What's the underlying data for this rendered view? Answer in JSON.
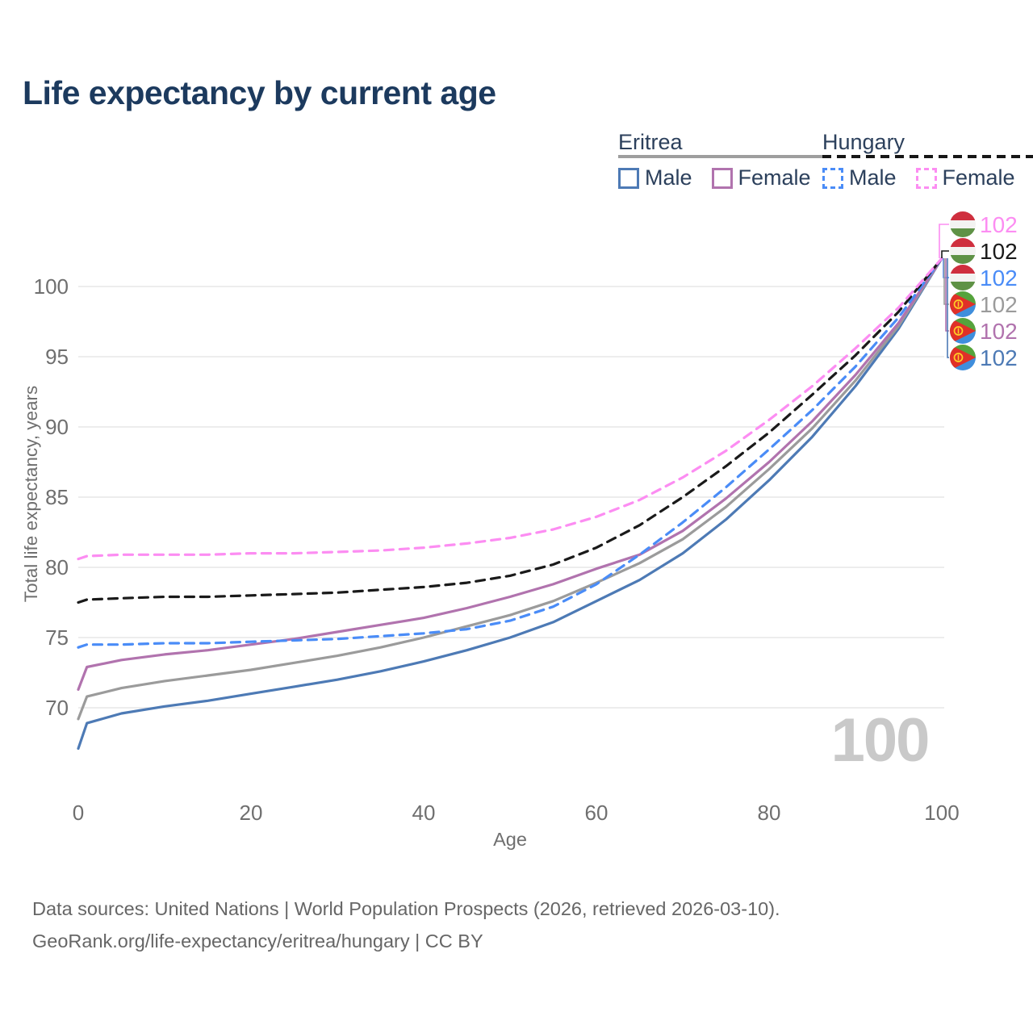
{
  "title": "Life expectancy by current age",
  "legend": {
    "groups": [
      {
        "name": "Eritrea",
        "line_style": "solid",
        "underline_color": "#9e9e9e",
        "items": [
          {
            "label": "Male",
            "color": "#4d7ab5"
          },
          {
            "label": "Female",
            "color": "#b173ae"
          }
        ]
      },
      {
        "name": "Hungary",
        "line_style": "dashed",
        "underline_color": "#161616",
        "items": [
          {
            "label": "Male",
            "color": "#4a8cf7"
          },
          {
            "label": "Female",
            "color": "#fc8df2"
          }
        ]
      }
    ]
  },
  "watermark": {
    "text": "100"
  },
  "footer": {
    "line1": "Data sources: United Nations | World Population Prospects (2026, retrieved 2026-03-10).",
    "line2": "GeoRank.org/life-expectancy/eritrea/hungary | CC BY"
  },
  "chart_data": {
    "type": "line",
    "title": "Life expectancy by current age",
    "xlabel": "Age",
    "ylabel": "Total life expectancy, years",
    "x_ticks": [
      0,
      20,
      40,
      60,
      80,
      100
    ],
    "y_ticks": [
      70,
      75,
      80,
      85,
      90,
      95,
      100
    ],
    "xlim": [
      0,
      100
    ],
    "ylim": [
      66,
      103
    ],
    "grid": true,
    "legend_position": "top-right",
    "ages": [
      0,
      1,
      5,
      10,
      15,
      20,
      25,
      30,
      35,
      40,
      45,
      50,
      55,
      60,
      65,
      70,
      75,
      80,
      85,
      90,
      95,
      100
    ],
    "series": [
      {
        "name": "Eritrea Male",
        "country": "Eritrea",
        "sex": "Male",
        "color": "#4d7ab5",
        "dashed": false,
        "values": [
          67.1,
          68.9,
          69.6,
          70.1,
          70.5,
          71.0,
          71.5,
          72.0,
          72.6,
          73.3,
          74.1,
          75.0,
          76.1,
          77.6,
          79.1,
          81.0,
          83.4,
          86.2,
          89.3,
          92.9,
          97.0,
          102
        ]
      },
      {
        "name": "Eritrea Both sexes",
        "country": "Eritrea",
        "sex": "Both",
        "color": "#9b9b9b",
        "dashed": false,
        "values": [
          69.2,
          70.8,
          71.4,
          71.9,
          72.3,
          72.7,
          73.2,
          73.7,
          74.3,
          75.0,
          75.8,
          76.6,
          77.6,
          78.9,
          80.3,
          82.0,
          84.3,
          87.0,
          89.9,
          93.3,
          97.2,
          102
        ]
      },
      {
        "name": "Eritrea Female",
        "country": "Eritrea",
        "sex": "Female",
        "color": "#b173ae",
        "dashed": false,
        "values": [
          71.3,
          72.9,
          73.4,
          73.8,
          74.1,
          74.5,
          74.9,
          75.4,
          75.9,
          76.4,
          77.1,
          77.9,
          78.8,
          79.9,
          80.9,
          82.6,
          84.9,
          87.5,
          90.4,
          93.7,
          97.4,
          102
        ]
      },
      {
        "name": "Hungary Male",
        "country": "Hungary",
        "sex": "Male",
        "color": "#4a8cf7",
        "dashed": true,
        "values": [
          74.3,
          74.5,
          74.5,
          74.6,
          74.6,
          74.7,
          74.8,
          74.9,
          75.1,
          75.3,
          75.6,
          76.2,
          77.2,
          78.8,
          80.9,
          83.2,
          85.7,
          88.4,
          91.2,
          94.3,
          97.8,
          102
        ]
      },
      {
        "name": "Hungary Both sexes",
        "country": "Hungary",
        "sex": "Both",
        "color": "#1a1a1a",
        "dashed": true,
        "values": [
          77.5,
          77.7,
          77.8,
          77.9,
          77.9,
          78.0,
          78.1,
          78.2,
          78.4,
          78.6,
          78.9,
          79.4,
          80.2,
          81.4,
          83.0,
          85.0,
          87.2,
          89.6,
          92.3,
          95.1,
          98.2,
          102
        ]
      },
      {
        "name": "Hungary Female",
        "country": "Hungary",
        "sex": "Female",
        "color": "#fc8df2",
        "dashed": true,
        "values": [
          80.6,
          80.8,
          80.9,
          80.9,
          80.9,
          81.0,
          81.0,
          81.1,
          81.2,
          81.4,
          81.7,
          82.1,
          82.7,
          83.6,
          84.8,
          86.4,
          88.3,
          90.5,
          92.9,
          95.6,
          98.5,
          102
        ]
      }
    ],
    "end_labels": [
      {
        "flag": "hungary",
        "series": "Hungary Female",
        "text": "102",
        "color": "#fc8df2"
      },
      {
        "flag": "hungary",
        "series": "Hungary Both sexes",
        "text": "102",
        "color": "#1a1a1a"
      },
      {
        "flag": "hungary",
        "series": "Hungary Male",
        "text": "102",
        "color": "#4a8cf7"
      },
      {
        "flag": "eritrea",
        "series": "Eritrea Both sexes",
        "text": "102",
        "color": "#9b9b9b"
      },
      {
        "flag": "eritrea",
        "series": "Eritrea Female",
        "text": "102",
        "color": "#b173ae"
      },
      {
        "flag": "eritrea",
        "series": "Eritrea Male",
        "text": "102",
        "color": "#4d7ab5"
      }
    ]
  }
}
